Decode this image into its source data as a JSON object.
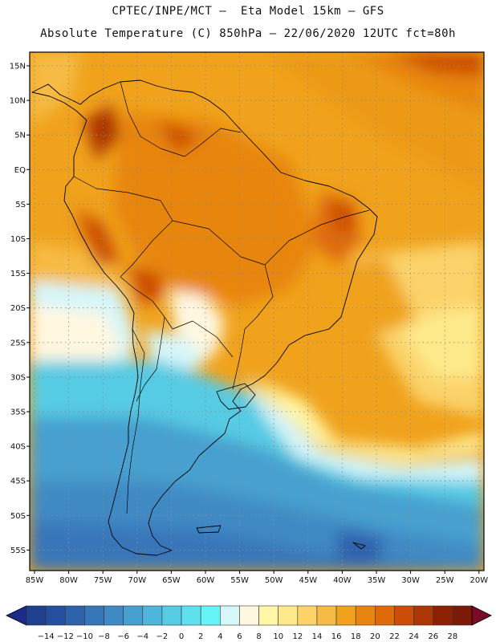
{
  "header": {
    "line1": "CPTEC/INPE/MCT –  Eta Model 15km – GFS",
    "line2": "Absolute Temperature (C) 850hPa – 22/06/2020 12UTC fct=80h"
  },
  "map": {
    "lat_labels": [
      "15N",
      "10N",
      "5N",
      "EQ",
      "5S",
      "10S",
      "15S",
      "20S",
      "25S",
      "30S",
      "35S",
      "40S",
      "45S",
      "50S",
      "55S"
    ],
    "lon_labels": [
      "85W",
      "80W",
      "75W",
      "70W",
      "65W",
      "60W",
      "55W",
      "50W",
      "45W",
      "40W",
      "35W",
      "30W",
      "25W",
      "20W"
    ],
    "grid": "dotted"
  },
  "colorbar": {
    "labels": [
      "-14",
      "-12",
      "-10",
      "-8",
      "-6",
      "-4",
      "-2",
      "0",
      "2",
      "4",
      "6",
      "8",
      "10",
      "12",
      "14",
      "16",
      "18",
      "20",
      "22",
      "24",
      "26",
      "28"
    ],
    "colors": [
      "#1f3f8f",
      "#25509f",
      "#2e62ad",
      "#3776b9",
      "#3f8ac4",
      "#46a0cf",
      "#4eb6da",
      "#56cbe4",
      "#5ee0ee",
      "#66f4f6",
      "#d6f6fa",
      "#fff7e0",
      "#fff7a6",
      "#fee98a",
      "#fbd36a",
      "#f6bb45",
      "#f0a21c",
      "#e88510",
      "#de6a0a",
      "#cc4e06",
      "#ac3605",
      "#8c2104",
      "#7c1a0a"
    ],
    "left_arrow_color": "#1c2a88",
    "right_arrow_color": "#7a0a26"
  }
}
